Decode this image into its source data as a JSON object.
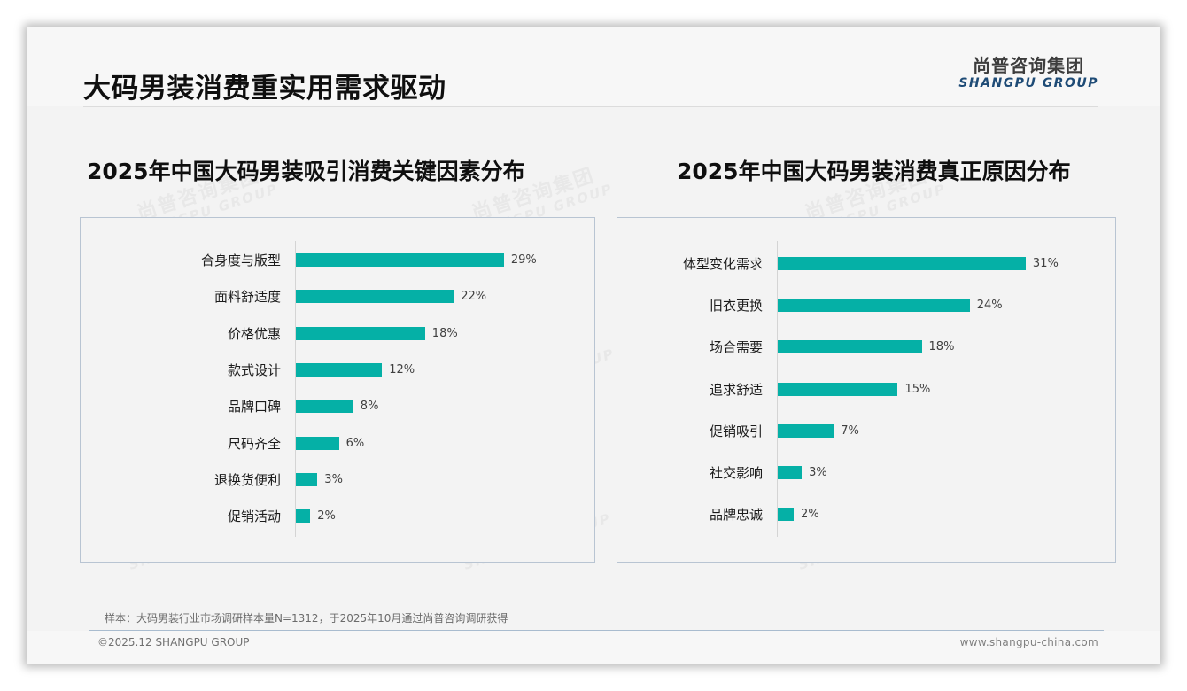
{
  "header": {
    "title": "大码男装消费重实用需求驱动",
    "logo_cn": "尚普咨询集团",
    "logo_en": "SHANGPU GROUP"
  },
  "watermark": {
    "cn": "尚普咨询集团",
    "en": "SHANGPU GROUP"
  },
  "colors": {
    "bar": "#05b0a6",
    "logo_en": "#1e4b76",
    "panel_border": "#b8c4d2"
  },
  "chart_data": [
    {
      "type": "bar",
      "orientation": "horizontal",
      "title": "2025年中国大码男装吸引消费关键因素分布",
      "categories": [
        "合身度与版型",
        "面料舒适度",
        "价格优惠",
        "款式设计",
        "品牌口碑",
        "尺码齐全",
        "退换货便利",
        "促销活动"
      ],
      "values": [
        29,
        22,
        18,
        12,
        8,
        6,
        3,
        2
      ],
      "value_labels": [
        "29%",
        "22%",
        "18%",
        "12%",
        "8%",
        "6%",
        "3%",
        "2%"
      ],
      "unit": "%",
      "xlabel": "",
      "ylabel": "",
      "grid": false,
      "legend": null
    },
    {
      "type": "bar",
      "orientation": "horizontal",
      "title": "2025年中国大码男装消费真正原因分布",
      "categories": [
        "体型变化需求",
        "旧衣更换",
        "场合需要",
        "追求舒适",
        "促销吸引",
        "社交影响",
        "品牌忠诚"
      ],
      "values": [
        31,
        24,
        18,
        15,
        7,
        3,
        2
      ],
      "value_labels": [
        "31%",
        "24%",
        "18%",
        "15%",
        "7%",
        "3%",
        "2%"
      ],
      "unit": "%",
      "xlabel": "",
      "ylabel": "",
      "grid": false,
      "legend": null
    }
  ],
  "footer": {
    "source_note": "样本：大码男装行业市场调研样本量N=1312，于2025年10月通过尚普咨询调研获得",
    "copyright": "©2025.12 SHANGPU GROUP",
    "website": "www.shangpu-china.com"
  }
}
